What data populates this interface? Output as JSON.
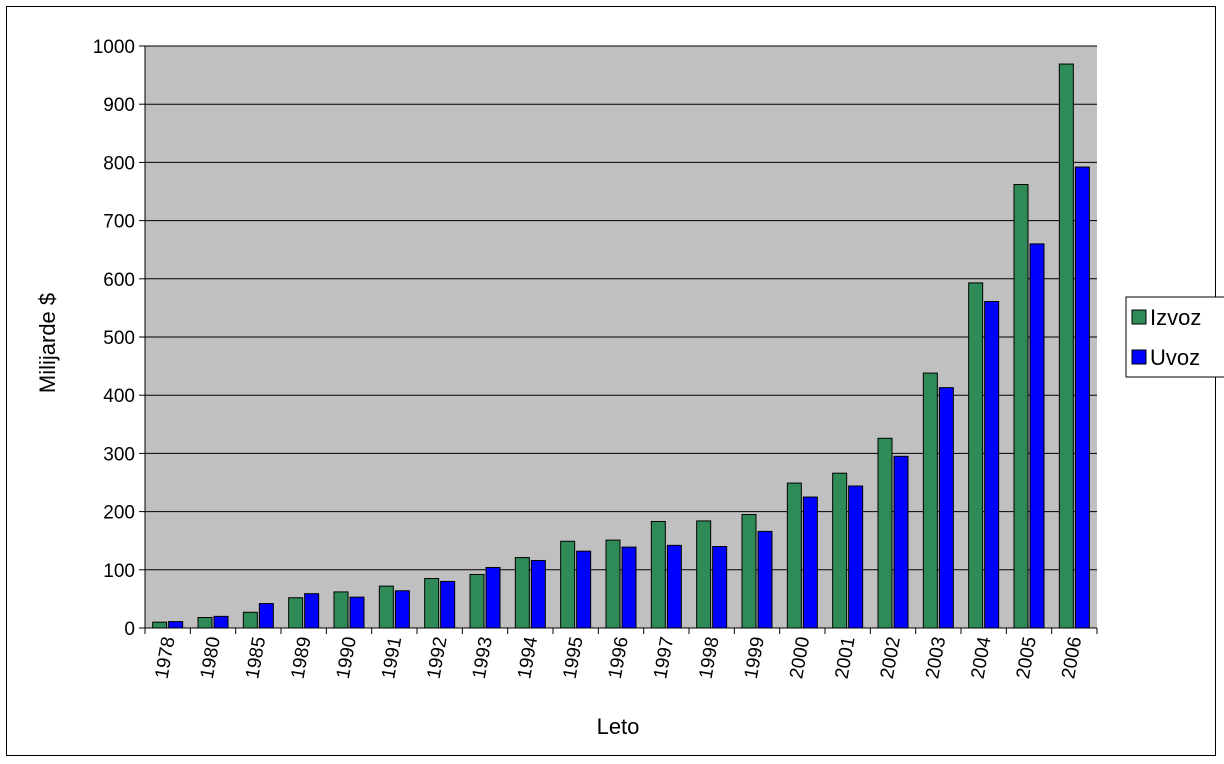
{
  "chart_data": {
    "type": "bar",
    "categories": [
      "1978",
      "1980",
      "1985",
      "1989",
      "1990",
      "1991",
      "1992",
      "1993",
      "1994",
      "1995",
      "1996",
      "1997",
      "1998",
      "1999",
      "2000",
      "2001",
      "2002",
      "2003",
      "2004",
      "2005",
      "2006"
    ],
    "series": [
      {
        "name": "Izvoz",
        "color": "#2e8b57",
        "values": [
          10,
          18,
          27,
          52,
          62,
          72,
          85,
          92,
          121,
          149,
          151,
          183,
          184,
          195,
          249,
          266,
          326,
          438,
          593,
          762,
          969
        ]
      },
      {
        "name": "Uvoz",
        "color": "#0000ff",
        "values": [
          11,
          20,
          42,
          59,
          53,
          64,
          80,
          104,
          116,
          132,
          139,
          142,
          140,
          166,
          225,
          244,
          295,
          413,
          561,
          660,
          792
        ]
      }
    ],
    "xlabel": "Leto",
    "ylabel": "Milijarde $",
    "ylim": [
      0,
      1000
    ],
    "yticks": [
      0,
      100,
      200,
      300,
      400,
      500,
      600,
      700,
      800,
      900,
      1000
    ],
    "grid": true,
    "plot_background": "#c0c0c0",
    "legend_position": "right"
  }
}
